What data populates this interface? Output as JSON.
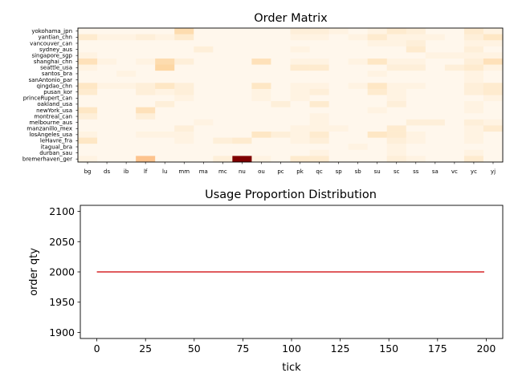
{
  "chart_data": [
    {
      "type": "heatmap",
      "title": "Order Matrix",
      "xlabel": "",
      "ylabel": "",
      "colormap": "OrRd",
      "columns": [
        "bg",
        "ds",
        "ib",
        "lf",
        "lu",
        "mm",
        "ma",
        "mc",
        "nu",
        "ou",
        "pc",
        "pk",
        "qc",
        "sp",
        "sb",
        "su",
        "sc",
        "ss",
        "sa",
        "vc",
        "yc",
        "yj"
      ],
      "rows": [
        "yokohama_jpn",
        "yantian_chn",
        "vancouver_can",
        "sydney_aus",
        "singapore_sgp",
        "shanghai_chn",
        "seattle_usa",
        "santos_bra",
        "sanAntonio_par",
        "qingdao_chn",
        "pusan_kor",
        "princeRupert_can",
        "oakland_usa",
        "newYork_usa",
        "montreal_can",
        "melbourne_aus",
        "manzanillo_mex",
        "losAngeles_usa",
        "leHavre_fra",
        "itagual_bra",
        "durban_sau",
        "bremerhaven_ger"
      ],
      "values": [
        [
          0,
          0,
          0,
          0,
          0,
          6,
          0,
          0,
          0,
          0,
          0,
          2,
          2,
          1,
          0,
          1,
          3,
          2,
          0,
          0,
          3,
          1
        ],
        [
          3,
          1,
          1,
          2,
          1,
          3,
          0,
          0,
          0,
          0,
          0,
          1,
          1,
          0,
          1,
          3,
          1,
          1,
          1,
          0,
          2,
          4
        ],
        [
          0,
          0,
          0,
          0,
          0,
          0,
          0,
          0,
          0,
          0,
          0,
          0,
          0,
          0,
          0,
          1,
          1,
          2,
          0,
          0,
          1,
          1
        ],
        [
          0,
          0,
          0,
          0,
          0,
          0,
          2,
          0,
          0,
          0,
          0,
          1,
          0,
          0,
          0,
          0,
          0,
          3,
          0,
          0,
          2,
          0
        ],
        [
          1,
          0,
          0,
          0,
          0,
          0,
          0,
          0,
          0,
          0,
          0,
          0,
          0,
          0,
          0,
          0,
          0,
          0,
          1,
          1,
          1,
          1
        ],
        [
          5,
          1,
          0,
          1,
          6,
          2,
          0,
          0,
          0,
          5,
          0,
          1,
          1,
          0,
          1,
          4,
          1,
          1,
          0,
          0,
          2,
          5
        ],
        [
          1,
          0,
          0,
          0,
          7,
          0,
          0,
          0,
          0,
          0,
          0,
          3,
          3,
          0,
          0,
          0,
          2,
          2,
          0,
          2,
          3,
          1
        ],
        [
          0,
          0,
          1,
          0,
          0,
          0,
          0,
          0,
          0,
          0,
          0,
          0,
          0,
          0,
          0,
          1,
          0,
          0,
          0,
          0,
          1,
          0
        ],
        [
          0,
          0,
          0,
          0,
          0,
          0,
          0,
          0,
          0,
          0,
          0,
          0,
          0,
          0,
          0,
          0,
          0,
          0,
          0,
          0,
          1,
          0
        ],
        [
          4,
          1,
          1,
          2,
          4,
          2,
          0,
          0,
          0,
          4,
          0,
          1,
          1,
          0,
          1,
          4,
          1,
          1,
          0,
          0,
          2,
          3
        ],
        [
          3,
          0,
          0,
          2,
          1,
          2,
          0,
          0,
          0,
          1,
          0,
          1,
          2,
          0,
          0,
          3,
          1,
          0,
          0,
          0,
          2,
          3
        ],
        [
          0,
          0,
          0,
          0,
          0,
          1,
          0,
          0,
          0,
          1,
          0,
          1,
          0,
          0,
          0,
          0,
          1,
          0,
          0,
          0,
          0,
          1
        ],
        [
          0,
          0,
          0,
          0,
          2,
          0,
          0,
          0,
          0,
          0,
          2,
          0,
          3,
          0,
          0,
          0,
          2,
          0,
          0,
          0,
          1,
          0
        ],
        [
          4,
          0,
          0,
          5,
          0,
          0,
          0,
          0,
          0,
          0,
          0,
          0,
          0,
          0,
          0,
          1,
          0,
          0,
          0,
          0,
          1,
          0
        ],
        [
          2,
          0,
          0,
          2,
          0,
          0,
          0,
          0,
          0,
          0,
          0,
          0,
          1,
          0,
          0,
          0,
          0,
          0,
          0,
          0,
          0,
          0
        ],
        [
          0,
          0,
          0,
          0,
          0,
          0,
          1,
          0,
          0,
          0,
          0,
          0,
          1,
          0,
          0,
          0,
          0,
          2,
          2,
          0,
          2,
          1
        ],
        [
          0,
          0,
          0,
          0,
          0,
          2,
          0,
          0,
          0,
          0,
          0,
          1,
          1,
          1,
          0,
          0,
          3,
          0,
          0,
          0,
          1,
          3
        ],
        [
          1,
          0,
          0,
          1,
          1,
          1,
          0,
          0,
          0,
          4,
          2,
          1,
          3,
          0,
          0,
          4,
          3,
          1,
          0,
          0,
          1,
          0
        ],
        [
          4,
          0,
          0,
          0,
          0,
          1,
          0,
          2,
          3,
          0,
          0,
          1,
          2,
          0,
          0,
          0,
          2,
          1,
          0,
          0,
          1,
          0
        ],
        [
          0,
          0,
          0,
          0,
          0,
          0,
          0,
          0,
          0,
          0,
          0,
          0,
          0,
          0,
          1,
          0,
          1,
          0,
          0,
          0,
          0,
          0
        ],
        [
          0,
          0,
          0,
          0,
          0,
          0,
          0,
          0,
          0,
          0,
          0,
          0,
          1,
          0,
          0,
          0,
          1,
          0,
          0,
          0,
          1,
          0
        ],
        [
          1,
          0,
          0,
          10,
          0,
          0,
          0,
          2,
          30,
          1,
          0,
          3,
          3,
          0,
          0,
          0,
          2,
          1,
          0,
          0,
          3,
          0
        ]
      ]
    },
    {
      "type": "line",
      "title": "Usage Proportion Distribution",
      "xlabel": "tick",
      "ylabel": "order qty",
      "xlim": [
        -8.5,
        208.5
      ],
      "ylim": [
        1890,
        2110
      ],
      "xticks": [
        0,
        25,
        50,
        75,
        100,
        125,
        150,
        175,
        200
      ],
      "yticks": [
        1900,
        1950,
        2000,
        2050,
        2100
      ],
      "series": [
        {
          "color": "#d62728",
          "x": [
            0,
            199
          ],
          "y": [
            2000,
            2000
          ]
        }
      ]
    }
  ]
}
